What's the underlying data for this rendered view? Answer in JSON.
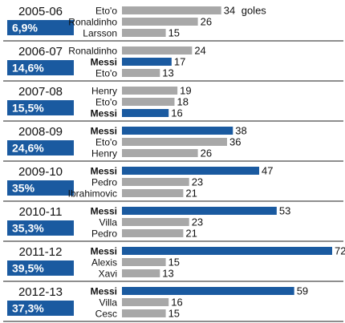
{
  "chart_data": {
    "type": "bar",
    "orientation": "horizontal",
    "title": "",
    "xlabel": "",
    "ylabel": "",
    "unit_suffix": "goles",
    "xlim": [
      0,
      72
    ],
    "grid": false,
    "legend": "none",
    "colors": {
      "highlight": "#1a5aa0",
      "other": "#a8a8a8",
      "badge": "#1a5aa0",
      "divider": "#4a4a4a"
    },
    "seasons": [
      {
        "season": "2005-06",
        "pct": "6,9%",
        "players": [
          {
            "name": "Eto'o",
            "value": 34,
            "highlight": false
          },
          {
            "name": "Ronaldinho",
            "value": 26,
            "highlight": false
          },
          {
            "name": "Larsson",
            "value": 15,
            "highlight": false
          }
        ]
      },
      {
        "season": "2006-07",
        "pct": "14,6%",
        "players": [
          {
            "name": "Ronaldinho",
            "value": 24,
            "highlight": false
          },
          {
            "name": "Messi",
            "value": 17,
            "highlight": true
          },
          {
            "name": "Eto'o",
            "value": 13,
            "highlight": false
          }
        ]
      },
      {
        "season": "2007-08",
        "pct": "15,5%",
        "players": [
          {
            "name": "Henry",
            "value": 19,
            "highlight": false
          },
          {
            "name": "Eto'o",
            "value": 18,
            "highlight": false
          },
          {
            "name": "Messi",
            "value": 16,
            "highlight": true
          }
        ]
      },
      {
        "season": "2008-09",
        "pct": "24,6%",
        "players": [
          {
            "name": "Messi",
            "value": 38,
            "highlight": true
          },
          {
            "name": "Eto'o",
            "value": 36,
            "highlight": false
          },
          {
            "name": "Henry",
            "value": 26,
            "highlight": false
          }
        ]
      },
      {
        "season": "2009-10",
        "pct": "35%",
        "players": [
          {
            "name": "Messi",
            "value": 47,
            "highlight": true
          },
          {
            "name": "Pedro",
            "value": 23,
            "highlight": false
          },
          {
            "name": "Ibrahimovic",
            "value": 21,
            "highlight": false
          }
        ]
      },
      {
        "season": "2010-11",
        "pct": "35,3%",
        "players": [
          {
            "name": "Messi",
            "value": 53,
            "highlight": true
          },
          {
            "name": "Villa",
            "value": 23,
            "highlight": false
          },
          {
            "name": "Pedro",
            "value": 21,
            "highlight": false
          }
        ]
      },
      {
        "season": "2011-12",
        "pct": "39,5%",
        "players": [
          {
            "name": "Messi",
            "value": 72,
            "highlight": true
          },
          {
            "name": "Alexis",
            "value": 15,
            "highlight": false
          },
          {
            "name": "Xavi",
            "value": 13,
            "highlight": false
          }
        ]
      },
      {
        "season": "2012-13",
        "pct": "37,3%",
        "players": [
          {
            "name": "Messi",
            "value": 59,
            "highlight": true
          },
          {
            "name": "Villa",
            "value": 16,
            "highlight": false
          },
          {
            "name": "Cesc",
            "value": 15,
            "highlight": false
          }
        ]
      }
    ]
  }
}
